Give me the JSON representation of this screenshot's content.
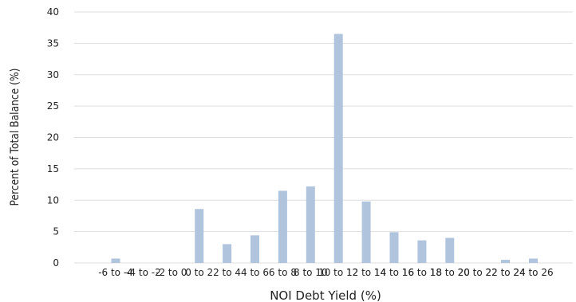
{
  "chart_data": {
    "type": "bar",
    "title": "",
    "xlabel": "NOI Debt Yield (%)",
    "ylabel": "Percent of Total Balance (%)",
    "ylim": [
      0,
      40
    ],
    "yticks": [
      0,
      5,
      10,
      15,
      20,
      25,
      30,
      35,
      40
    ],
    "grid": "horizontal",
    "legend": "none",
    "bar_color": "#b0c4de",
    "categories": [
      "-6 to -4",
      "-4 to -2",
      "-2 to 0",
      "0 to 2",
      "2 to 4",
      "4 to 6",
      "6 to 8",
      "8 to 10",
      "10 to 12",
      "12 to 14",
      "14 to 16",
      "16 to 18",
      "18 to 20",
      "20 to 22",
      "22 to 24",
      "24 to 26"
    ],
    "values": [
      0.7,
      0,
      0,
      8.6,
      3.0,
      4.4,
      11.5,
      12.2,
      36.5,
      9.8,
      4.9,
      3.6,
      4.0,
      0,
      0.5,
      0.7
    ]
  }
}
